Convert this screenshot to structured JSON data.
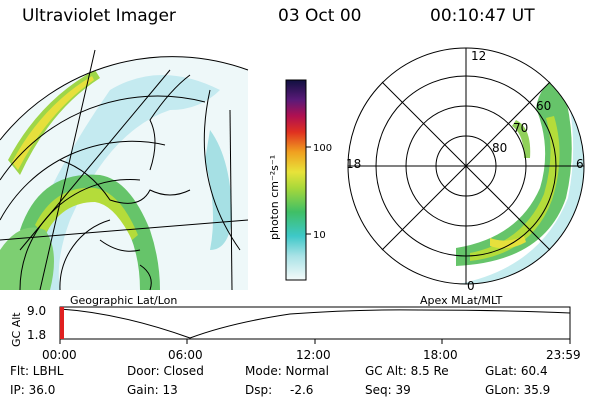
{
  "header": {
    "instrument": "Ultraviolet Imager",
    "date": "03 Oct 00",
    "time": "00:10:47 UT"
  },
  "colorbar": {
    "unit_label": "photon cm⁻²s⁻¹",
    "tick_100": "100",
    "tick_10": "10"
  },
  "geo_panel": {
    "caption": "Geographic Lat/Lon"
  },
  "apex_panel": {
    "caption": "Apex MLat/MLT",
    "mlt_top": "12",
    "mlt_left": "18",
    "mlt_right": "6",
    "mlt_bottom": "0",
    "lat_60": "60",
    "lat_70": "70",
    "lat_80": "80"
  },
  "orbit": {
    "axis_title": "GC Alt",
    "y_top": "9.0",
    "y_bottom": "1.8",
    "x_ticks": [
      "00:00",
      "06:00",
      "12:00",
      "18:00",
      "23:59"
    ]
  },
  "footer": {
    "filter": "Flt: LBHL",
    "ip": "IP: 36.0",
    "door": "Door: Closed",
    "gain": "Gain: 13",
    "mode": "Mode: Normal",
    "dsp_label": "Dsp:",
    "dsp_value": "-2.6",
    "gc_alt": "GC Alt: 8.5 Re",
    "seq": "Seq: 39",
    "glat": "GLat: 60.4",
    "glon": "GLon: 35.9"
  }
}
